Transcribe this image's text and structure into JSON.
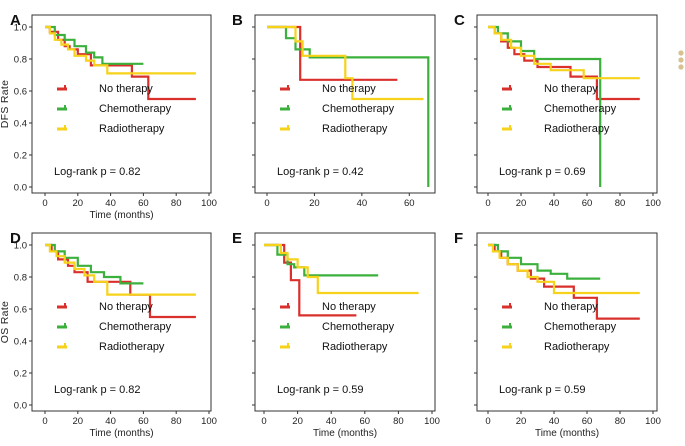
{
  "chart_data": [
    {
      "type": "line",
      "panel": "A",
      "ylabel": "DFS Rate",
      "xlabel": "Time (months)",
      "xlim": [
        0,
        100
      ],
      "ylim": [
        0,
        1.0
      ],
      "xticks": [
        "0",
        "20",
        "40",
        "60",
        "80",
        "100"
      ],
      "yticks": [
        "0.0",
        "0.2",
        "0.4",
        "0.6",
        "0.8",
        "1.0"
      ],
      "legend": [
        "No therapy",
        "Chemotherapy",
        "Radiotherapy"
      ],
      "pvalue": "Log-rank p = 0.82",
      "series": [
        {
          "name": "No therapy",
          "x": [
            0,
            3,
            8,
            12,
            15,
            20,
            28,
            53,
            63,
            92
          ],
          "y": [
            1.0,
            0.97,
            0.92,
            0.88,
            0.86,
            0.83,
            0.76,
            0.69,
            0.55,
            0.55
          ]
        },
        {
          "name": "Chemotherapy",
          "x": [
            0,
            6,
            12,
            18,
            25,
            30,
            35,
            60
          ],
          "y": [
            1.0,
            0.95,
            0.92,
            0.88,
            0.84,
            0.81,
            0.77,
            0.77
          ]
        },
        {
          "name": "Radiotherapy",
          "x": [
            0,
            3,
            6,
            10,
            14,
            18,
            25,
            30,
            38,
            92
          ],
          "y": [
            1.0,
            0.96,
            0.92,
            0.89,
            0.86,
            0.82,
            0.79,
            0.76,
            0.71,
            0.71
          ]
        }
      ]
    },
    {
      "type": "line",
      "panel": "B",
      "ylabel": "",
      "xlabel": "",
      "xlim": [
        0,
        70
      ],
      "ylim": [
        0,
        1.0
      ],
      "xticks": [
        "0",
        "20",
        "40",
        "60"
      ],
      "yticks": [],
      "legend": [
        "No therapy",
        "Chemotherapy",
        "Radiotherapy"
      ],
      "pvalue": "Log-rank p = 0.42",
      "series": [
        {
          "name": "No therapy",
          "x": [
            0,
            14,
            55
          ],
          "y": [
            1.0,
            0.67,
            0.67
          ]
        },
        {
          "name": "Chemotherapy",
          "x": [
            0,
            8,
            12,
            18,
            68,
            68
          ],
          "y": [
            1.0,
            0.93,
            0.86,
            0.81,
            0.81,
            0.0
          ]
        },
        {
          "name": "Radiotherapy",
          "x": [
            0,
            12,
            15,
            33,
            36,
            66
          ],
          "y": [
            1.0,
            0.91,
            0.82,
            0.68,
            0.55,
            0.55
          ]
        }
      ]
    },
    {
      "type": "line",
      "panel": "C",
      "ylabel": "",
      "xlabel": "",
      "xlim": [
        0,
        100
      ],
      "ylim": [
        0,
        1.0
      ],
      "xticks": [
        "0",
        "20",
        "40",
        "60",
        "80",
        "100"
      ],
      "yticks": [],
      "legend": [
        "No therapy",
        "Chemotherapy",
        "Radiotherapy"
      ],
      "pvalue": "Log-rank p = 0.69",
      "series": [
        {
          "name": "No therapy",
          "x": [
            0,
            4,
            8,
            12,
            16,
            22,
            30,
            50,
            66,
            92
          ],
          "y": [
            1.0,
            0.96,
            0.91,
            0.87,
            0.83,
            0.79,
            0.75,
            0.69,
            0.55,
            0.55
          ]
        },
        {
          "name": "Chemotherapy",
          "x": [
            0,
            6,
            12,
            20,
            28,
            68,
            68
          ],
          "y": [
            1.0,
            0.96,
            0.91,
            0.85,
            0.8,
            0.8,
            0.0
          ]
        },
        {
          "name": "Radiotherapy",
          "x": [
            0,
            4,
            8,
            14,
            20,
            28,
            38,
            58,
            92
          ],
          "y": [
            1.0,
            0.96,
            0.92,
            0.87,
            0.82,
            0.77,
            0.73,
            0.68,
            0.68
          ]
        }
      ]
    },
    {
      "type": "line",
      "panel": "D",
      "ylabel": "OS Rate",
      "xlabel": "Time (months)",
      "xlim": [
        0,
        100
      ],
      "ylim": [
        0,
        1.0
      ],
      "xticks": [
        "0",
        "20",
        "40",
        "60",
        "80",
        "100"
      ],
      "yticks": [
        "0.0",
        "0.2",
        "0.4",
        "0.6",
        "0.8",
        "1.0"
      ],
      "legend": [
        "No therapy",
        "Chemotherapy",
        "Radiotherapy"
      ],
      "pvalue": "Log-rank p = 0.82",
      "series": [
        {
          "name": "No therapy",
          "x": [
            0,
            4,
            8,
            14,
            18,
            26,
            52,
            64,
            92
          ],
          "y": [
            1.0,
            0.96,
            0.91,
            0.87,
            0.83,
            0.77,
            0.69,
            0.55,
            0.55
          ]
        },
        {
          "name": "Chemotherapy",
          "x": [
            0,
            6,
            12,
            20,
            28,
            36,
            46,
            60
          ],
          "y": [
            1.0,
            0.96,
            0.92,
            0.87,
            0.83,
            0.8,
            0.76,
            0.76
          ]
        },
        {
          "name": "Radiotherapy",
          "x": [
            0,
            3,
            7,
            12,
            18,
            24,
            30,
            38,
            92
          ],
          "y": [
            1.0,
            0.96,
            0.93,
            0.89,
            0.85,
            0.81,
            0.77,
            0.69,
            0.69
          ]
        }
      ]
    },
    {
      "type": "line",
      "panel": "E",
      "ylabel": "",
      "xlabel": "Time (months)",
      "xlim": [
        0,
        100
      ],
      "ylim": [
        0,
        1.0
      ],
      "xticks": [
        "0",
        "20",
        "40",
        "60",
        "80",
        "100"
      ],
      "yticks": [],
      "legend": [
        "No therapy",
        "Chemotherapy",
        "Radiotherapy"
      ],
      "pvalue": "Log-rank p = 0.59",
      "series": [
        {
          "name": "No therapy",
          "x": [
            0,
            12,
            16,
            21,
            55
          ],
          "y": [
            1.0,
            0.89,
            0.78,
            0.56,
            0.56
          ]
        },
        {
          "name": "Chemotherapy",
          "x": [
            0,
            8,
            14,
            18,
            24,
            68
          ],
          "y": [
            1.0,
            0.94,
            0.88,
            0.86,
            0.81,
            0.81
          ]
        },
        {
          "name": "Radiotherapy",
          "x": [
            0,
            10,
            14,
            20,
            26,
            32,
            92
          ],
          "y": [
            1.0,
            0.95,
            0.91,
            0.86,
            0.8,
            0.7,
            0.7
          ]
        }
      ]
    },
    {
      "type": "line",
      "panel": "F",
      "ylabel": "",
      "xlabel": "Time (months)",
      "xlim": [
        0,
        100
      ],
      "ylim": [
        0,
        1.0
      ],
      "xticks": [
        "0",
        "20",
        "40",
        "60",
        "80",
        "100"
      ],
      "yticks": [],
      "legend": [
        "No therapy",
        "Chemotherapy",
        "Radiotherapy"
      ],
      "pvalue": "Log-rank p = 0.59",
      "series": [
        {
          "name": "No therapy",
          "x": [
            0,
            4,
            8,
            12,
            18,
            26,
            34,
            52,
            66,
            92
          ],
          "y": [
            1.0,
            0.96,
            0.92,
            0.88,
            0.84,
            0.79,
            0.74,
            0.67,
            0.54,
            0.54
          ]
        },
        {
          "name": "Chemotherapy",
          "x": [
            0,
            6,
            12,
            20,
            30,
            38,
            48,
            68
          ],
          "y": [
            1.0,
            0.96,
            0.92,
            0.88,
            0.84,
            0.82,
            0.79,
            0.79
          ]
        },
        {
          "name": "Radiotherapy",
          "x": [
            0,
            3,
            7,
            12,
            18,
            24,
            30,
            40,
            92
          ],
          "y": [
            1.0,
            0.96,
            0.92,
            0.88,
            0.84,
            0.8,
            0.77,
            0.7,
            0.7
          ]
        }
      ]
    }
  ],
  "colors": {
    "No therapy": "#d9302c",
    "Chemotherapy": "#3cb03c",
    "Radiotherapy": "#f6d21a",
    "dots": "#d6c28e"
  },
  "more_icon": "vertical-ellipsis-icon"
}
